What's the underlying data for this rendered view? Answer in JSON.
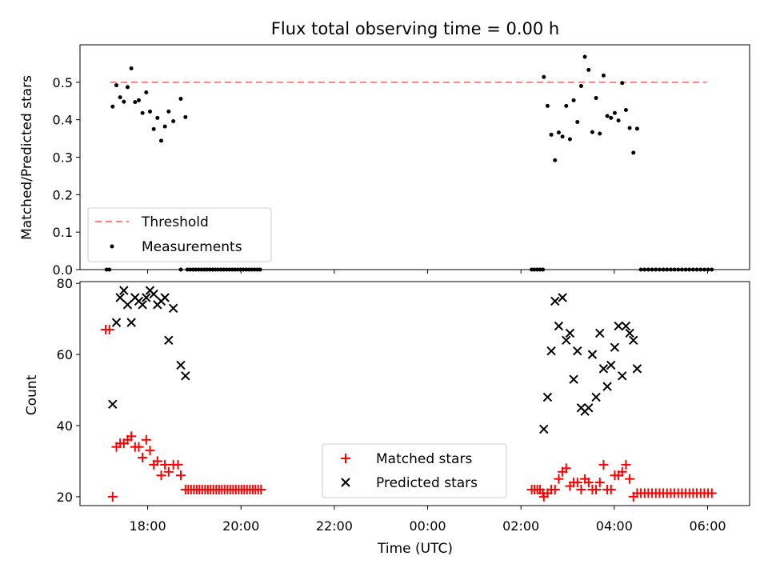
{
  "chart_data": [
    {
      "type": "scatter",
      "title": "Flux total observing time = 0.00 h",
      "xlabel": "",
      "ylabel": "Matched/Predicted stars",
      "ylim": [
        0,
        0.6
      ],
      "yticks": [
        "0.0",
        "0.1",
        "0.2",
        "0.3",
        "0.4",
        "0.5"
      ],
      "xlim": [
        -1.45,
        12.9
      ],
      "grid": false,
      "legend_position": "lower-left",
      "series": [
        {
          "name": "Threshold",
          "kind": "dashed-line",
          "color": "#ff7f7f",
          "points": [
            [
              -0.8,
              0.5
            ],
            [
              11.98,
              0.5
            ]
          ]
        },
        {
          "name": "Measurements",
          "kind": "dot",
          "color": "#000000",
          "points": [
            [
              -0.88,
              0.0
            ],
            [
              -0.82,
              0.0
            ],
            [
              -0.75,
              0.435
            ],
            [
              -0.67,
              0.492
            ],
            [
              -0.59,
              0.46
            ],
            [
              -0.51,
              0.448
            ],
            [
              -0.43,
              0.487
            ],
            [
              -0.35,
              0.537
            ],
            [
              -0.27,
              0.447
            ],
            [
              -0.19,
              0.452
            ],
            [
              -0.11,
              0.418
            ],
            [
              -0.03,
              0.473
            ],
            [
              0.05,
              0.422
            ],
            [
              0.13,
              0.375
            ],
            [
              0.21,
              0.405
            ],
            [
              0.29,
              0.344
            ],
            [
              0.37,
              0.382
            ],
            [
              0.45,
              0.422
            ],
            [
              0.55,
              0.396
            ],
            [
              0.71,
              0.456
            ],
            [
              0.81,
              0.407
            ],
            [
              0.71,
              0.0
            ],
            [
              0.85,
              0.0
            ],
            [
              0.91,
              0.0
            ],
            [
              0.97,
              0.0
            ],
            [
              1.03,
              0.0
            ],
            [
              1.09,
              0.0
            ],
            [
              1.15,
              0.0
            ],
            [
              1.21,
              0.0
            ],
            [
              1.27,
              0.0
            ],
            [
              1.33,
              0.0
            ],
            [
              1.39,
              0.0
            ],
            [
              1.45,
              0.0
            ],
            [
              1.51,
              0.0
            ],
            [
              1.57,
              0.0
            ],
            [
              1.63,
              0.0
            ],
            [
              1.69,
              0.0
            ],
            [
              1.75,
              0.0
            ],
            [
              1.81,
              0.0
            ],
            [
              1.87,
              0.0
            ],
            [
              1.93,
              0.0
            ],
            [
              1.99,
              0.0
            ],
            [
              2.05,
              0.0
            ],
            [
              2.11,
              0.0
            ],
            [
              2.17,
              0.0
            ],
            [
              2.23,
              0.0
            ],
            [
              2.29,
              0.0
            ],
            [
              2.35,
              0.0
            ],
            [
              2.41,
              0.0
            ],
            [
              8.23,
              0.0
            ],
            [
              8.29,
              0.0
            ],
            [
              8.35,
              0.0
            ],
            [
              8.41,
              0.0
            ],
            [
              8.47,
              0.0
            ],
            [
              8.49,
              0.514
            ],
            [
              8.57,
              0.437
            ],
            [
              8.65,
              0.36
            ],
            [
              8.73,
              0.292
            ],
            [
              8.81,
              0.366
            ],
            [
              8.89,
              0.355
            ],
            [
              8.97,
              0.437
            ],
            [
              9.05,
              0.348
            ],
            [
              9.13,
              0.452
            ],
            [
              9.21,
              0.394
            ],
            [
              9.29,
              0.49
            ],
            [
              9.37,
              0.568
            ],
            [
              9.45,
              0.533
            ],
            [
              9.53,
              0.367
            ],
            [
              9.61,
              0.458
            ],
            [
              9.69,
              0.363
            ],
            [
              9.77,
              0.518
            ],
            [
              9.85,
              0.41
            ],
            [
              9.93,
              0.405
            ],
            [
              10.01,
              0.418
            ],
            [
              10.09,
              0.398
            ],
            [
              10.17,
              0.498
            ],
            [
              10.25,
              0.426
            ],
            [
              10.33,
              0.378
            ],
            [
              10.41,
              0.312
            ],
            [
              10.49,
              0.376
            ],
            [
              10.57,
              0.0
            ],
            [
              10.65,
              0.0
            ],
            [
              10.73,
              0.0
            ],
            [
              10.81,
              0.0
            ],
            [
              10.89,
              0.0
            ],
            [
              10.97,
              0.0
            ],
            [
              11.05,
              0.0
            ],
            [
              11.13,
              0.0
            ],
            [
              11.21,
              0.0
            ],
            [
              11.29,
              0.0
            ],
            [
              11.37,
              0.0
            ],
            [
              11.45,
              0.0
            ],
            [
              11.53,
              0.0
            ],
            [
              11.61,
              0.0
            ],
            [
              11.69,
              0.0
            ],
            [
              11.77,
              0.0
            ],
            [
              11.85,
              0.0
            ],
            [
              11.93,
              0.0
            ],
            [
              12.01,
              0.0
            ],
            [
              12.09,
              0.0
            ]
          ]
        }
      ]
    },
    {
      "type": "scatter",
      "title": "",
      "xlabel": "Time (UTC)",
      "ylabel": "Count",
      "ylim": [
        17.5,
        80.5
      ],
      "yticks": [
        "20",
        "40",
        "60",
        "80"
      ],
      "xlim": [
        -1.45,
        12.9
      ],
      "xticks": [
        "18:00",
        "20:00",
        "22:00",
        "00:00",
        "02:00",
        "04:00",
        "06:00"
      ],
      "xtick_hours": [
        0,
        2,
        4,
        6,
        8,
        10,
        12
      ],
      "grid": false,
      "legend_position": "lower-center",
      "series": [
        {
          "name": "Matched stars",
          "kind": "plus",
          "color": "#ff0000",
          "points": [
            [
              -0.9,
              67
            ],
            [
              -0.82,
              67
            ],
            [
              -0.75,
              20
            ],
            [
              -0.67,
              34
            ],
            [
              -0.59,
              35
            ],
            [
              -0.51,
              35
            ],
            [
              -0.43,
              36
            ],
            [
              -0.35,
              37
            ],
            [
              -0.27,
              34
            ],
            [
              -0.19,
              34
            ],
            [
              -0.11,
              31
            ],
            [
              -0.03,
              36
            ],
            [
              0.05,
              33
            ],
            [
              0.13,
              29
            ],
            [
              0.21,
              30
            ],
            [
              0.29,
              26
            ],
            [
              0.37,
              29
            ],
            [
              0.45,
              27
            ],
            [
              0.55,
              29
            ],
            [
              0.65,
              29
            ],
            [
              0.71,
              26
            ],
            [
              0.81,
              22
            ],
            [
              0.87,
              22
            ],
            [
              0.93,
              22
            ],
            [
              0.99,
              22
            ],
            [
              1.05,
              22
            ],
            [
              1.11,
              22
            ],
            [
              1.17,
              22
            ],
            [
              1.23,
              22
            ],
            [
              1.29,
              22
            ],
            [
              1.35,
              22
            ],
            [
              1.41,
              22
            ],
            [
              1.47,
              22
            ],
            [
              1.53,
              22
            ],
            [
              1.59,
              22
            ],
            [
              1.65,
              22
            ],
            [
              1.71,
              22
            ],
            [
              1.77,
              22
            ],
            [
              1.83,
              22
            ],
            [
              1.89,
              22
            ],
            [
              1.95,
              22
            ],
            [
              2.01,
              22
            ],
            [
              2.07,
              22
            ],
            [
              2.13,
              22
            ],
            [
              2.19,
              22
            ],
            [
              2.25,
              22
            ],
            [
              2.31,
              22
            ],
            [
              2.37,
              22
            ],
            [
              2.43,
              22
            ],
            [
              8.23,
              22
            ],
            [
              8.29,
              22
            ],
            [
              8.35,
              22
            ],
            [
              8.41,
              22
            ],
            [
              8.47,
              21
            ],
            [
              8.49,
              20
            ],
            [
              8.57,
              21
            ],
            [
              8.65,
              22
            ],
            [
              8.73,
              22
            ],
            [
              8.81,
              25
            ],
            [
              8.89,
              27
            ],
            [
              8.97,
              28
            ],
            [
              9.05,
              23
            ],
            [
              9.13,
              24
            ],
            [
              9.21,
              24
            ],
            [
              9.29,
              22
            ],
            [
              9.37,
              25
            ],
            [
              9.45,
              24
            ],
            [
              9.53,
              22
            ],
            [
              9.61,
              22
            ],
            [
              9.69,
              24
            ],
            [
              9.77,
              29
            ],
            [
              9.85,
              22
            ],
            [
              9.93,
              22
            ],
            [
              10.01,
              26
            ],
            [
              10.09,
              26
            ],
            [
              10.17,
              27
            ],
            [
              10.25,
              29
            ],
            [
              10.33,
              25
            ],
            [
              10.41,
              20
            ],
            [
              10.49,
              21
            ],
            [
              10.57,
              21
            ],
            [
              10.65,
              21
            ],
            [
              10.73,
              21
            ],
            [
              10.81,
              21
            ],
            [
              10.89,
              21
            ],
            [
              10.97,
              21
            ],
            [
              11.05,
              21
            ],
            [
              11.13,
              21
            ],
            [
              11.21,
              21
            ],
            [
              11.29,
              21
            ],
            [
              11.37,
              21
            ],
            [
              11.45,
              21
            ],
            [
              11.53,
              21
            ],
            [
              11.61,
              21
            ],
            [
              11.69,
              21
            ],
            [
              11.77,
              21
            ],
            [
              11.85,
              21
            ],
            [
              11.93,
              21
            ],
            [
              12.01,
              21
            ],
            [
              12.09,
              21
            ]
          ]
        },
        {
          "name": "Predicted stars",
          "kind": "x",
          "color": "#000000",
          "points": [
            [
              -0.75,
              46
            ],
            [
              -0.67,
              69
            ],
            [
              -0.59,
              76
            ],
            [
              -0.51,
              78
            ],
            [
              -0.43,
              74
            ],
            [
              -0.35,
              69
            ],
            [
              -0.27,
              76
            ],
            [
              -0.19,
              75
            ],
            [
              -0.11,
              74
            ],
            [
              -0.03,
              76
            ],
            [
              0.05,
              78
            ],
            [
              0.13,
              77
            ],
            [
              0.21,
              74
            ],
            [
              0.29,
              75
            ],
            [
              0.37,
              76
            ],
            [
              0.45,
              64
            ],
            [
              0.55,
              73
            ],
            [
              0.71,
              57
            ],
            [
              0.81,
              54
            ],
            [
              8.49,
              39
            ],
            [
              8.57,
              48
            ],
            [
              8.65,
              61
            ],
            [
              8.73,
              75
            ],
            [
              8.81,
              68
            ],
            [
              8.89,
              76
            ],
            [
              8.97,
              64
            ],
            [
              9.05,
              66
            ],
            [
              9.13,
              53
            ],
            [
              9.21,
              61
            ],
            [
              9.29,
              45
            ],
            [
              9.37,
              44
            ],
            [
              9.45,
              45
            ],
            [
              9.53,
              60
            ],
            [
              9.61,
              48
            ],
            [
              9.69,
              66
            ],
            [
              9.77,
              56
            ],
            [
              9.85,
              51
            ],
            [
              9.93,
              57
            ],
            [
              10.01,
              62
            ],
            [
              10.09,
              68
            ],
            [
              10.17,
              54
            ],
            [
              10.25,
              68
            ],
            [
              10.33,
              66
            ],
            [
              10.41,
              64
            ],
            [
              10.49,
              56
            ]
          ]
        }
      ]
    }
  ]
}
